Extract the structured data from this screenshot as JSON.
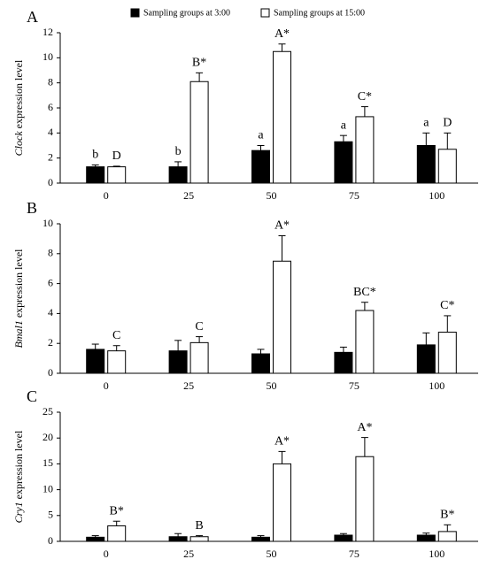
{
  "chart_data": [
    {
      "type": "bar",
      "panel": "A",
      "ylabel_gene": "Clock",
      "ylabel": "expression level",
      "categories": [
        "0",
        "25",
        "50",
        "75",
        "100"
      ],
      "ylim": [
        0,
        12
      ],
      "yticks": [
        0,
        2,
        4,
        6,
        8,
        10,
        12
      ],
      "series": [
        {
          "name": "Sampling  groups at 3:00",
          "color": "#000000",
          "values": [
            1.3,
            1.3,
            2.6,
            3.3,
            3.0
          ],
          "errors": [
            0.15,
            0.4,
            0.4,
            0.5,
            1.0
          ],
          "value_labels": [
            "b",
            "b",
            "a",
            "a",
            "a"
          ]
        },
        {
          "name": "Sampling  groups at 15:00",
          "color": "#ffffff",
          "values": [
            1.3,
            8.1,
            10.5,
            5.3,
            2.7
          ],
          "errors": [
            0.05,
            0.7,
            0.6,
            0.8,
            1.3
          ],
          "value_labels": [
            "D",
            "B*",
            "A*",
            "C*",
            "D"
          ]
        }
      ]
    },
    {
      "type": "bar",
      "panel": "B",
      "ylabel_gene": "Bmal1",
      "ylabel": "expression level",
      "categories": [
        "0",
        "25",
        "50",
        "75",
        "100"
      ],
      "ylim": [
        0,
        10
      ],
      "yticks": [
        0,
        2,
        4,
        6,
        8,
        10
      ],
      "series": [
        {
          "color": "#000000",
          "values": [
            1.6,
            1.5,
            1.3,
            1.4,
            1.9
          ],
          "errors": [
            0.35,
            0.7,
            0.3,
            0.35,
            0.8
          ]
        },
        {
          "color": "#ffffff",
          "values": [
            1.5,
            2.05,
            7.5,
            4.2,
            2.75
          ],
          "errors": [
            0.35,
            0.4,
            1.7,
            0.55,
            1.1
          ],
          "value_labels": [
            "C",
            "C",
            "A*",
            "BC*",
            "C*"
          ]
        }
      ]
    },
    {
      "type": "bar",
      "panel": "C",
      "ylabel_gene": "Cry1",
      "ylabel": "expression level",
      "categories": [
        "0",
        "25",
        "50",
        "75",
        "100"
      ],
      "ylim": [
        0,
        25
      ],
      "yticks": [
        0,
        5,
        10,
        15,
        20,
        25
      ],
      "series": [
        {
          "color": "#000000",
          "values": [
            0.8,
            0.9,
            0.8,
            1.2,
            1.2
          ],
          "errors": [
            0.3,
            0.6,
            0.3,
            0.3,
            0.4
          ]
        },
        {
          "color": "#ffffff",
          "values": [
            3.0,
            0.9,
            15.0,
            16.4,
            1.9
          ],
          "errors": [
            0.9,
            0.2,
            2.4,
            3.7,
            1.3
          ],
          "value_labels": [
            "B*",
            "B",
            "A*",
            "A*",
            "B*"
          ]
        }
      ]
    }
  ]
}
